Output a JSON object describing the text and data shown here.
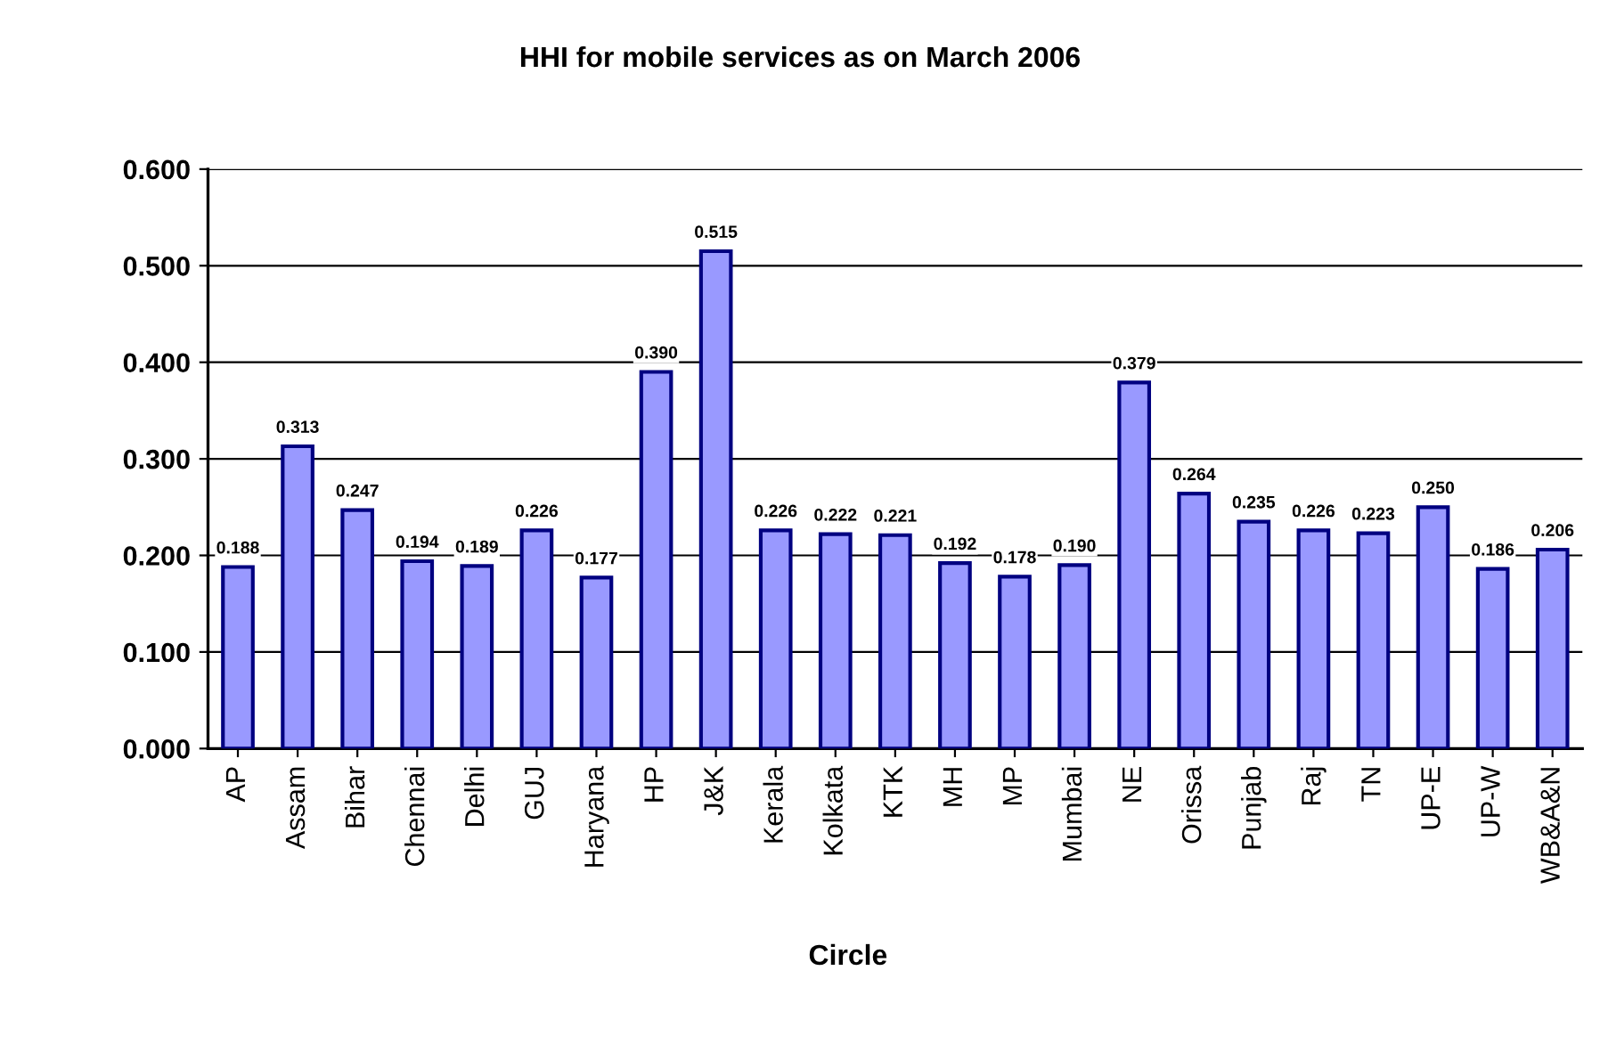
{
  "chart_data": {
    "type": "bar",
    "title": "HHI for mobile services as on March 2006",
    "xlabel": "Circle",
    "categories": [
      "AP",
      "Assam",
      "Bihar",
      "Chennai",
      "Delhi",
      "GUJ",
      "Haryana",
      "HP",
      "J&K",
      "Kerala",
      "Kolkata",
      "KTK",
      "MH",
      "MP",
      "Mumbai",
      "NE",
      "Orissa",
      "Punjab",
      "Raj",
      "TN",
      "UP-E",
      "UP-W",
      "WB&A&N"
    ],
    "values": [
      0.188,
      0.313,
      0.247,
      0.194,
      0.189,
      0.226,
      0.177,
      0.39,
      0.515,
      0.226,
      0.222,
      0.221,
      0.192,
      0.178,
      0.19,
      0.379,
      0.264,
      0.235,
      0.226,
      0.223,
      0.25,
      0.186,
      0.206
    ],
    "value_labels": [
      "0.188",
      "0.313",
      "0.247",
      "0.194",
      "0.189",
      "0.226",
      "0.177",
      "0.390",
      "0.515",
      "0.226",
      "0.222",
      "0.221",
      "0.192",
      "0.178",
      "0.190",
      "0.379",
      "0.264",
      "0.235",
      "0.226",
      "0.223",
      "0.250",
      "0.186",
      "0.206"
    ],
    "color": "#9999ff",
    "ylim": [
      0,
      0.6
    ],
    "yticks": [
      {
        "value": 0,
        "label": "0.000"
      },
      {
        "value": 0.1,
        "label": "0.100"
      },
      {
        "value": 0.2,
        "label": "0.200"
      },
      {
        "value": 0.3,
        "label": "0.300"
      },
      {
        "value": 0.4,
        "label": "0.400"
      },
      {
        "value": 0.5,
        "label": "0.500"
      },
      {
        "value": 0.6,
        "label": "0.600"
      }
    ],
    "grid": "y",
    "legend": false
  }
}
